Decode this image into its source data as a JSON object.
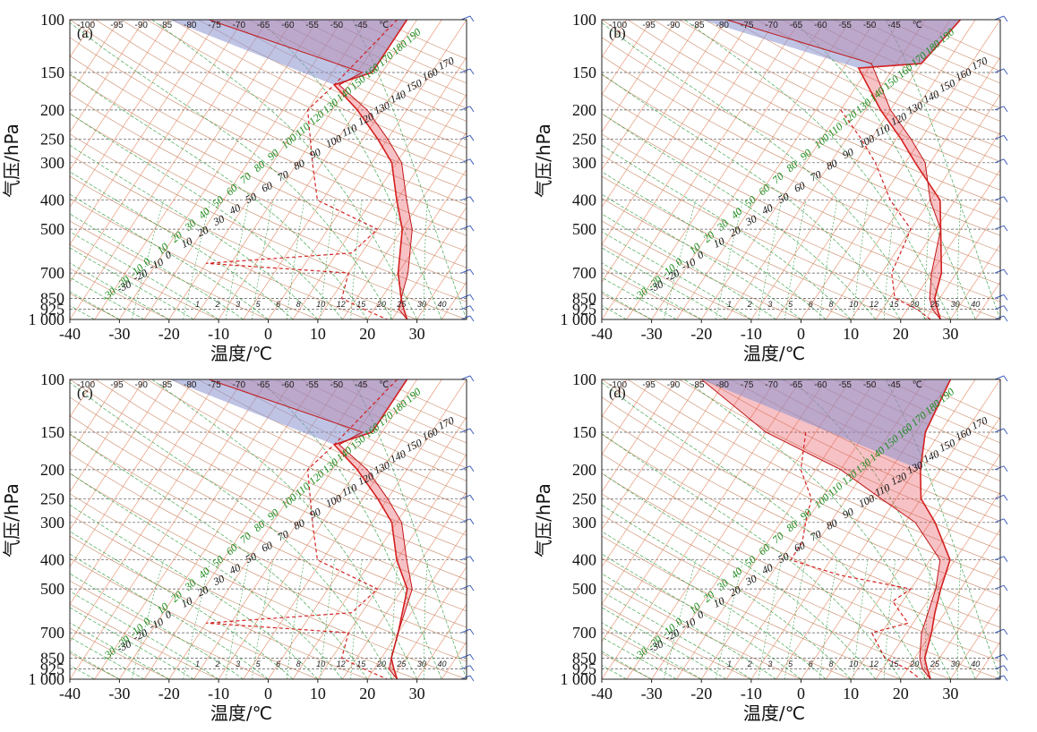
{
  "chart_data": [
    {
      "type": "line",
      "panel_label": "(a)",
      "xlabel": "温度/℃",
      "ylabel": "气压/hPa",
      "x_ticks": [
        "-40",
        "-30",
        "-20",
        "-10",
        "0",
        "10",
        "20",
        "30"
      ],
      "y_ticks": [
        "100",
        "150",
        "200",
        "250",
        "300",
        "400",
        "500",
        "700",
        "850",
        "925",
        "1 000"
      ],
      "xlim": [
        -40,
        40
      ],
      "pressure_levels": [
        100,
        150,
        200,
        250,
        300,
        400,
        500,
        700,
        850,
        925,
        1000
      ],
      "temperature": {
        "p": [
          100,
          150,
          165,
          200,
          250,
          300,
          400,
          500,
          700,
          850,
          925,
          1000
        ],
        "t": [
          -12,
          -12,
          -18,
          -10,
          -2,
          4,
          10,
          15,
          20,
          24,
          26,
          28
        ]
      },
      "dewpoint": {
        "p": [
          100,
          165,
          200,
          300,
          400,
          500,
          600,
          650,
          700,
          850,
          925,
          1000
        ],
        "t": [
          -14,
          -18,
          -20,
          -12,
          -6,
          10,
          8,
          -20,
          10,
          12,
          18,
          24
        ]
      },
      "parcel": {
        "p": [
          100,
          150,
          165,
          200,
          250,
          300,
          400,
          500,
          700,
          850,
          925,
          1000
        ],
        "t": [
          -52,
          -14,
          -17,
          -8,
          0,
          6,
          12,
          17,
          22,
          24,
          25,
          28
        ]
      },
      "cape_color": "#e8505a",
      "cin_color": "#8a93d0"
    },
    {
      "type": "line",
      "panel_label": "(b)",
      "xlabel": "温度/℃",
      "ylabel": "气压/hPa",
      "x_ticks": [
        "-40",
        "-30",
        "-20",
        "-10",
        "0",
        "10",
        "20",
        "30"
      ],
      "y_ticks": [
        "100",
        "150",
        "200",
        "250",
        "300",
        "400",
        "500",
        "700",
        "850",
        "925",
        "1 000"
      ],
      "xlim": [
        -40,
        40
      ],
      "pressure_levels": [
        100,
        150,
        200,
        250,
        300,
        400,
        500,
        700,
        850,
        925,
        1000
      ],
      "temperature": {
        "p": [
          100,
          140,
          145,
          200,
          250,
          300,
          400,
          500,
          700,
          850,
          925,
          1000
        ],
        "t": [
          -8,
          -10,
          -22,
          -12,
          -4,
          2,
          12,
          16,
          22,
          24,
          26,
          28
        ]
      },
      "dewpoint": {
        "p": [
          200,
          250,
          300,
          400,
          500,
          700,
          850,
          925,
          1000
        ],
        "t": [
          -20,
          -12,
          -6,
          2,
          10,
          12,
          16,
          22,
          26
        ]
      },
      "parcel": {
        "p": [
          100,
          140,
          200,
          250,
          300,
          400,
          500,
          700,
          850,
          925,
          1000
        ],
        "t": [
          -55,
          -20,
          -10,
          -2,
          4,
          10,
          16,
          20,
          23,
          25,
          28
        ]
      },
      "cape_color": "#e8505a",
      "cin_color": "#8a93d0"
    },
    {
      "type": "line",
      "panel_label": "(c)",
      "xlabel": "温度/℃",
      "ylabel": "气压/hPa",
      "x_ticks": [
        "-40",
        "-30",
        "-20",
        "-10",
        "0",
        "10",
        "20",
        "30"
      ],
      "y_ticks": [
        "100",
        "150",
        "200",
        "250",
        "300",
        "400",
        "500",
        "700",
        "850",
        "925",
        "1 000"
      ],
      "xlim": [
        -40,
        40
      ],
      "pressure_levels": [
        100,
        150,
        200,
        250,
        300,
        400,
        500,
        700,
        850,
        925,
        1000
      ],
      "temperature": {
        "p": [
          100,
          150,
          165,
          200,
          250,
          300,
          400,
          500,
          700,
          850,
          925,
          1000
        ],
        "t": [
          -12,
          -12,
          -18,
          -10,
          -2,
          4,
          10,
          16,
          20,
          22,
          24,
          26
        ]
      },
      "dewpoint": {
        "p": [
          100,
          165,
          200,
          300,
          400,
          500,
          600,
          650,
          700,
          850,
          925,
          1000
        ],
        "t": [
          -14,
          -18,
          -20,
          -12,
          -6,
          10,
          8,
          -20,
          10,
          12,
          18,
          24
        ]
      },
      "parcel": {
        "p": [
          100,
          150,
          165,
          200,
          250,
          300,
          400,
          500,
          700,
          850,
          925,
          1000
        ],
        "t": [
          -52,
          -14,
          -17,
          -8,
          0,
          6,
          12,
          17,
          20,
          22,
          23,
          26
        ]
      },
      "cape_color": "#e8505a",
      "cin_color": "#8a93d0"
    },
    {
      "type": "line",
      "panel_label": "(d)",
      "xlabel": "温度/℃",
      "ylabel": "气压/hPa",
      "x_ticks": [
        "-40",
        "-30",
        "-20",
        "-10",
        "0",
        "10",
        "20",
        "30"
      ],
      "y_ticks": [
        "100",
        "150",
        "200",
        "250",
        "300",
        "400",
        "500",
        "700",
        "850",
        "925",
        "1 000"
      ],
      "xlim": [
        -40,
        40
      ],
      "pressure_levels": [
        100,
        150,
        200,
        250,
        300,
        400,
        500,
        700,
        850,
        925,
        1000
      ],
      "temperature": {
        "p": [
          100,
          150,
          200,
          250,
          300,
          400,
          500,
          600,
          700,
          850,
          925,
          1000
        ],
        "t": [
          -10,
          -8,
          -4,
          0,
          6,
          14,
          16,
          18,
          20,
          22,
          24,
          26
        ]
      },
      "dewpoint": {
        "p": [
          150,
          200,
          250,
          300,
          350,
          400,
          450,
          500,
          550,
          650,
          700,
          850,
          925,
          1000
        ],
        "t": [
          -32,
          -28,
          -22,
          -20,
          -18,
          -18,
          -6,
          10,
          8,
          14,
          8,
          14,
          20,
          24
        ]
      },
      "parcel": {
        "p": [
          100,
          150,
          200,
          250,
          300,
          400,
          500,
          700,
          850,
          925,
          1000
        ],
        "t": [
          -60,
          -40,
          -20,
          -8,
          2,
          12,
          15,
          18,
          21,
          23,
          26
        ]
      },
      "cape_color": "#e8505a",
      "cin_color": "#8a93d0"
    }
  ],
  "top_scale_ticks": [
    "-100",
    "-95",
    "-90",
    "-85",
    "-80",
    "-75",
    "-70",
    "-65",
    "-60",
    "-55",
    "-50",
    "-45",
    "℃"
  ],
  "green_labels": [
    "-30",
    "-20",
    "-10",
    "0",
    "10",
    "20",
    "30",
    "40",
    "50",
    "60",
    "70",
    "80",
    "90",
    "100",
    "110",
    "120",
    "130",
    "140",
    "150",
    "160",
    "170",
    "180",
    "190"
  ],
  "black_labels": [
    "-30",
    "-20",
    "-10",
    "0",
    "10",
    "20",
    "30",
    "40",
    "50",
    "60",
    "70",
    "80",
    "90",
    "100",
    "110",
    "120",
    "130",
    "140",
    "150",
    "160",
    "170"
  ],
  "bottom_mixing_labels": [
    "1",
    "2",
    "3",
    "5",
    "6",
    "8",
    "10",
    "12",
    "15",
    "20",
    "25",
    "30",
    "40"
  ]
}
